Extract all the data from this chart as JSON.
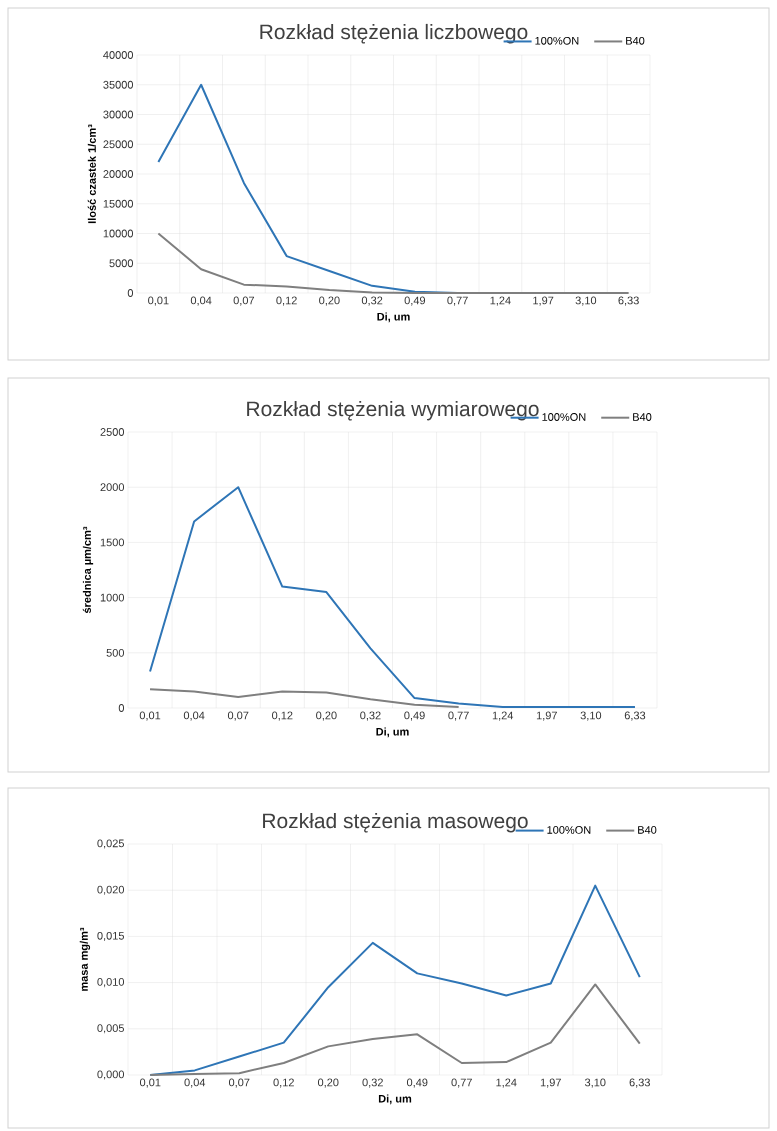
{
  "chart_data": [
    {
      "type": "line",
      "title": "Rozkład stężenia liczbowego",
      "xlabel": "Di, um",
      "ylabel": "Ilość czastek 1/cm³",
      "categories": [
        "0,01",
        "0,04",
        "0,07",
        "0,12",
        "0,20",
        "0,32",
        "0,49",
        "0,77",
        "1,24",
        "1,97",
        "3,10",
        "6,33"
      ],
      "series": [
        {
          "name": "100%ON",
          "color": "#2e75b6",
          "values": [
            22000,
            35000,
            18500,
            6200,
            3700,
            1200,
            200,
            0,
            0,
            null,
            null,
            null
          ]
        },
        {
          "name": "B40",
          "color": "#7f7f7f",
          "values": [
            10000,
            4000,
            1400,
            1100,
            500,
            100,
            0,
            0,
            0,
            0,
            0,
            0
          ]
        }
      ],
      "ylim": [
        0,
        40000
      ],
      "yticks": [
        0,
        5000,
        10000,
        15000,
        20000,
        25000,
        30000,
        35000,
        40000
      ],
      "grid": true,
      "legend": "top right",
      "marker": "none"
    },
    {
      "type": "line",
      "title": "Rozkład stężenia wymiarowego",
      "xlabel": "Di, um",
      "ylabel": "średnica  µm/cm³",
      "categories": [
        "0,01",
        "0,04",
        "0,07",
        "0,12",
        "0,20",
        "0,32",
        "0,49",
        "0,77",
        "1,24",
        "1,97",
        "3,10",
        "6,33"
      ],
      "series": [
        {
          "name": "100%ON",
          "color": "#2e75b6",
          "values": [
            330,
            1690,
            2000,
            1100,
            1050,
            540,
            90,
            40,
            10,
            10,
            10,
            10
          ]
        },
        {
          "name": "B40",
          "color": "#7f7f7f",
          "values": [
            170,
            150,
            100,
            150,
            140,
            80,
            30,
            10,
            null,
            null,
            null,
            null
          ]
        }
      ],
      "ylim": [
        0,
        2500
      ],
      "yticks": [
        0,
        500,
        1000,
        1500,
        2000,
        2500
      ],
      "grid": true,
      "legend": "top right",
      "marker": "none"
    },
    {
      "type": "line",
      "title": "Rozkład stężenia masowego",
      "xlabel": "Di, um",
      "ylabel": "masa mg/m³",
      "categories": [
        "0,01",
        "0,04",
        "0,07",
        "0,12",
        "0,20",
        "0,32",
        "0,49",
        "0,77",
        "1,24",
        "1,97",
        "3,10",
        "6,33"
      ],
      "series": [
        {
          "name": "100%ON",
          "color": "#2e75b6",
          "values": [
            0,
            0.0005,
            0.002,
            0.0035,
            0.0095,
            0.0143,
            0.011,
            0.0099,
            0.0086,
            0.0099,
            0.0205,
            0.0106
          ]
        },
        {
          "name": "B40",
          "color": "#7f7f7f",
          "values": [
            0,
            0.0001,
            0.0002,
            0.0013,
            0.0031,
            0.0039,
            0.0044,
            0.0013,
            0.0014,
            0.0035,
            0.0098,
            0.0034
          ]
        }
      ],
      "ylim": [
        0,
        0.025
      ],
      "yticks": [
        {
          "value": 0,
          "label": "0,000"
        },
        {
          "value": 0.005,
          "label": "0,005"
        },
        {
          "value": 0.01,
          "label": "0,010"
        },
        {
          "value": 0.015,
          "label": "0,015"
        },
        {
          "value": 0.02,
          "label": "0,020"
        },
        {
          "value": 0.025,
          "label": "0,025"
        }
      ],
      "grid": true,
      "legend": "top right",
      "marker": "none"
    }
  ]
}
